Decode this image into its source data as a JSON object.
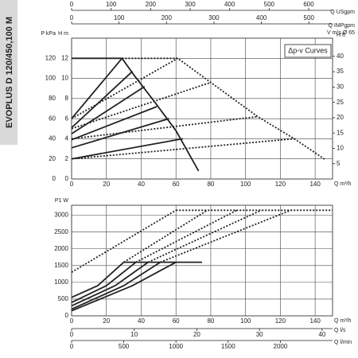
{
  "side_title": "EVOPLUS D 120/450,100 M",
  "chart_data": [
    {
      "type": "line",
      "annotation": "Δp-v Curves",
      "xlabel": "Q m³/h",
      "xlim": [
        0,
        150
      ],
      "xticks": [
        0,
        20,
        40,
        60,
        80,
        100,
        120,
        140
      ],
      "ylabel": "H m",
      "ylim": [
        0,
        14
      ],
      "yticks": [
        0,
        2,
        4,
        6,
        8,
        10,
        12
      ],
      "y2label": "H ft",
      "y2lim": [
        0,
        45.93
      ],
      "y2ticks": [
        5,
        10,
        15,
        20,
        25,
        30,
        35,
        40
      ],
      "pressure_axis": {
        "label": "P kPa",
        "lim": [
          0,
          140
        ],
        "ticks": [
          0,
          20,
          40,
          60,
          80,
          100,
          120
        ]
      },
      "top_axes": [
        {
          "label": "Q USgpm",
          "lim": [
            0,
            660.4
          ],
          "ticks": [
            0,
            100,
            200,
            300,
            400,
            500,
            600
          ]
        },
        {
          "label": "Q IMPgpm",
          "lim": [
            0,
            549.9
          ],
          "ticks": [
            0,
            100,
            200,
            300,
            400,
            500
          ]
        }
      ],
      "velocity_label": "V m/s Ø 65",
      "grid": true,
      "series": [
        {
          "color": "#222",
          "style": "solid",
          "x": [
            0,
            29,
            36,
            48,
            60,
            73
          ],
          "values": [
            12,
            12,
            10.3,
            7.6,
            4.8,
            0.8
          ]
        },
        {
          "color": "#222",
          "style": "solid",
          "x": [
            0,
            29
          ],
          "values": [
            6,
            12
          ]
        },
        {
          "color": "#222",
          "style": "solid",
          "x": [
            0,
            35
          ],
          "values": [
            5.1,
            10.7
          ]
        },
        {
          "color": "#222",
          "style": "solid",
          "x": [
            0,
            42
          ],
          "values": [
            4.5,
            9.2
          ]
        },
        {
          "color": "#222",
          "style": "solid",
          "x": [
            0,
            49
          ],
          "values": [
            3.9,
            7.2
          ]
        },
        {
          "color": "#222",
          "style": "solid",
          "x": [
            0,
            56
          ],
          "values": [
            3.1,
            6
          ]
        },
        {
          "color": "#222",
          "style": "solid",
          "x": [
            0,
            64
          ],
          "values": [
            2,
            4
          ]
        },
        {
          "color": "#222",
          "style": "dashed",
          "x": [
            29,
            61,
            80,
            107,
            128,
            146
          ],
          "values": [
            12,
            12,
            9.6,
            6.2,
            4,
            1.9
          ]
        },
        {
          "color": "#222",
          "style": "dashed",
          "x": [
            0,
            61
          ],
          "values": [
            6,
            12
          ]
        },
        {
          "color": "#222",
          "style": "dashed",
          "x": [
            0,
            80
          ],
          "values": [
            5,
            9.6
          ]
        },
        {
          "color": "#222",
          "style": "dashed",
          "x": [
            0,
            107
          ],
          "values": [
            4,
            6.2
          ]
        },
        {
          "color": "#222",
          "style": "dashed",
          "x": [
            0,
            128
          ],
          "values": [
            2,
            4
          ]
        }
      ]
    },
    {
      "type": "line",
      "xlabel": "Q m³/h",
      "xlim": [
        0,
        150
      ],
      "xticks": [
        0,
        20,
        40,
        60,
        80,
        100,
        120,
        140
      ],
      "ylabel": "P1 W",
      "ylim": [
        0,
        3300
      ],
      "yticks": [
        0,
        500,
        1000,
        1500,
        2000,
        2500,
        3000
      ],
      "bottom_axes": [
        {
          "label": "Q l/s",
          "lim": [
            0,
            41.67
          ],
          "ticks": [
            0,
            10,
            20,
            30,
            40
          ]
        },
        {
          "label": "Q l/min",
          "lim": [
            0,
            2500
          ],
          "ticks": [
            0,
            500,
            1000,
            1500,
            2000
          ]
        }
      ],
      "grid": true,
      "series": [
        {
          "color": "#222",
          "style": "solid",
          "x": [
            30,
            75
          ],
          "values": [
            1600,
            1600
          ]
        },
        {
          "color": "#222",
          "style": "solid",
          "x": [
            0,
            15,
            30
          ],
          "values": [
            550,
            900,
            1600
          ]
        },
        {
          "color": "#222",
          "style": "solid",
          "x": [
            0,
            20,
            37
          ],
          "values": [
            400,
            900,
            1600
          ]
        },
        {
          "color": "#222",
          "style": "solid",
          "x": [
            0,
            25,
            44
          ],
          "values": [
            300,
            900,
            1600
          ]
        },
        {
          "color": "#222",
          "style": "solid",
          "x": [
            0,
            30,
            51
          ],
          "values": [
            200,
            900,
            1600
          ]
        },
        {
          "color": "#222",
          "style": "solid",
          "x": [
            0,
            35,
            60
          ],
          "values": [
            150,
            900,
            1600
          ]
        },
        {
          "color": "#222",
          "style": "dashed",
          "x": [
            60,
            150
          ],
          "values": [
            3150,
            3150
          ]
        },
        {
          "color": "#222",
          "style": "dashed",
          "x": [
            0,
            60
          ],
          "values": [
            1300,
            3150
          ]
        },
        {
          "color": "#222",
          "style": "dashed",
          "x": [
            30,
            78
          ],
          "values": [
            1600,
            3150
          ]
        },
        {
          "color": "#222",
          "style": "dashed",
          "x": [
            37,
            95
          ],
          "values": [
            1600,
            3150
          ]
        },
        {
          "color": "#222",
          "style": "dashed",
          "x": [
            44,
            109
          ],
          "values": [
            1600,
            3150
          ]
        },
        {
          "color": "#222",
          "style": "dashed",
          "x": [
            51,
            126
          ],
          "values": [
            1600,
            3150
          ]
        }
      ]
    }
  ]
}
